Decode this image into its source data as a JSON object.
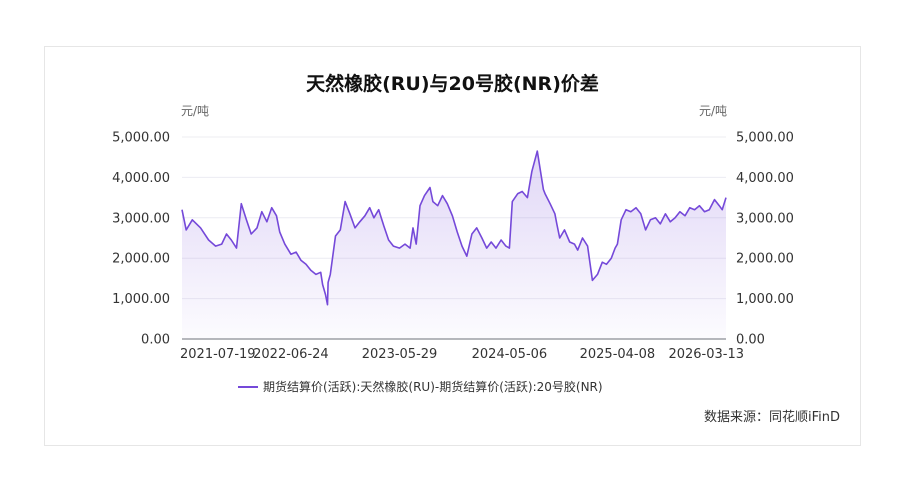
{
  "title": "天然橡胶(RU)与20号胶(NR)价差",
  "source": "数据来源：同花顺iFinD",
  "chart_data": {
    "type": "area",
    "unit_left": "元/吨",
    "unit_right": "元/吨",
    "ylim": [
      0,
      5000
    ],
    "yticks": [
      "0.00",
      "1,000.00",
      "2,000.00",
      "3,000.00",
      "4,000.00",
      "5,000.00"
    ],
    "xticks": [
      "2021-07-19",
      "2022-06-24",
      "2023-05-29",
      "2024-05-06",
      "2025-04-08",
      "2026-03-13"
    ],
    "grid": true,
    "legend_position": "bottom",
    "line_color": "#7549d9",
    "series": [
      {
        "name": "期货结算价(活跃):天然橡胶(RU)-期货结算价(活跃):20号胶(NR)",
        "x": [
          "2021-07-19",
          "2021-08-01",
          "2021-08-20",
          "2021-09-15",
          "2021-10-10",
          "2021-11-01",
          "2021-11-20",
          "2021-12-05",
          "2021-12-20",
          "2022-01-05",
          "2022-01-20",
          "2022-02-05",
          "2022-02-20",
          "2022-03-10",
          "2022-03-25",
          "2022-04-10",
          "2022-04-25",
          "2022-05-10",
          "2022-05-20",
          "2022-06-05",
          "2022-06-24",
          "2022-07-10",
          "2022-07-25",
          "2022-08-10",
          "2022-08-25",
          "2022-09-10",
          "2022-09-25",
          "2022-10-01",
          "2022-10-10",
          "2022-10-16",
          "2022-10-18",
          "2022-10-25",
          "2022-11-10",
          "2022-11-25",
          "2022-12-10",
          "2022-12-25",
          "2023-01-10",
          "2023-01-25",
          "2023-02-10",
          "2023-02-25",
          "2023-03-10",
          "2023-03-25",
          "2023-04-10",
          "2023-04-25",
          "2023-05-10",
          "2023-05-29",
          "2023-06-15",
          "2023-07-01",
          "2023-07-10",
          "2023-07-20",
          "2023-08-01",
          "2023-08-15",
          "2023-09-01",
          "2023-09-10",
          "2023-09-25",
          "2023-10-10",
          "2023-10-25",
          "2023-11-10",
          "2023-11-25",
          "2023-12-10",
          "2023-12-25",
          "2024-01-10",
          "2024-01-25",
          "2024-02-10",
          "2024-02-25",
          "2024-03-10",
          "2024-03-25",
          "2024-04-10",
          "2024-04-25",
          "2024-05-06",
          "2024-05-15",
          "2024-06-01",
          "2024-06-15",
          "2024-07-01",
          "2024-07-15",
          "2024-08-01",
          "2024-08-20",
          "2024-08-25",
          "2024-09-10",
          "2024-09-25",
          "2024-10-01",
          "2024-10-10",
          "2024-10-25",
          "2024-11-10",
          "2024-11-25",
          "2024-12-05",
          "2024-12-20",
          "2025-01-05",
          "2025-01-20",
          "2025-02-05",
          "2025-02-20",
          "2025-03-05",
          "2025-03-20",
          "2025-04-01",
          "2025-04-08",
          "2025-04-20",
          "2025-05-05",
          "2025-05-20",
          "2025-06-05",
          "2025-06-20",
          "2025-07-05",
          "2025-07-20",
          "2025-08-05",
          "2025-08-20",
          "2025-09-05",
          "2025-09-20",
          "2025-10-05",
          "2025-10-20",
          "2025-11-05",
          "2025-11-20",
          "2025-12-05",
          "2025-12-20",
          "2026-01-05",
          "2026-01-20",
          "2026-02-05",
          "2026-02-20",
          "2026-03-01",
          "2026-03-13"
        ],
        "values": [
          3200,
          2700,
          2950,
          2750,
          2450,
          2300,
          2350,
          2600,
          2450,
          2250,
          3350,
          2950,
          2600,
          2750,
          3150,
          2900,
          3250,
          3050,
          2650,
          2350,
          2100,
          2150,
          1950,
          1850,
          1700,
          1600,
          1650,
          1350,
          1100,
          850,
          1400,
          1600,
          2550,
          2700,
          3400,
          3100,
          2750,
          2900,
          3050,
          3250,
          3000,
          3200,
          2800,
          2450,
          2300,
          2250,
          2350,
          2250,
          2750,
          2350,
          3300,
          3550,
          3750,
          3400,
          3300,
          3550,
          3350,
          3050,
          2650,
          2300,
          2050,
          2600,
          2750,
          2500,
          2250,
          2400,
          2250,
          2450,
          2300,
          2250,
          3400,
          3600,
          3650,
          3500,
          4150,
          4650,
          3700,
          3600,
          3350,
          3100,
          2850,
          2500,
          2700,
          2400,
          2350,
          2200,
          2500,
          2300,
          1450,
          1600,
          1900,
          1850,
          2000,
          2250,
          2350,
          2950,
          3200,
          3150,
          3250,
          3100,
          2700,
          2950,
          3000,
          2850,
          3100,
          2900,
          3000,
          3150,
          3050,
          3250,
          3200,
          3300,
          3150,
          3200,
          3450,
          3300,
          3200,
          3500
        ]
      }
    ]
  }
}
